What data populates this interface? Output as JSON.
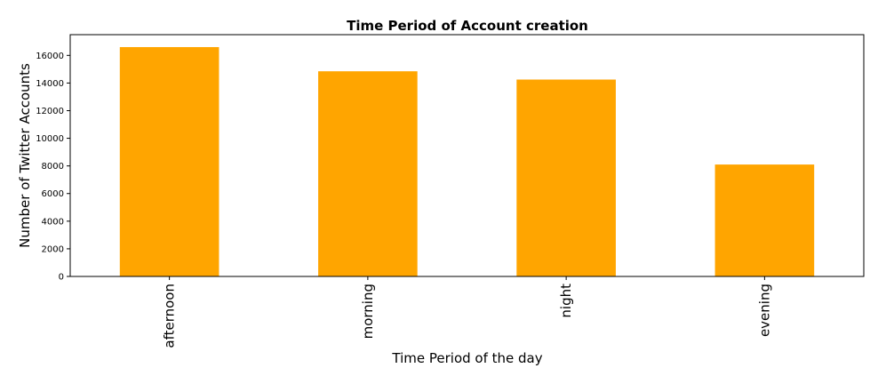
{
  "chart_data": {
    "type": "bar",
    "title": "Time Period of Account creation",
    "xlabel": "Time Period of the day",
    "ylabel": "Number of Twitter Accounts",
    "categories": [
      "afternoon",
      "morning",
      "night",
      "evening"
    ],
    "values": [
      16600,
      14850,
      14250,
      8100
    ],
    "ylim": [
      0,
      17500
    ],
    "yticks": [
      0,
      2000,
      4000,
      6000,
      8000,
      10000,
      12000,
      14000,
      16000
    ],
    "ytick_labels": [
      "0",
      "2000",
      "4000",
      "6000",
      "8000",
      "10000",
      "12000",
      "14000",
      "16000"
    ],
    "bar_color": "#FFA500",
    "grid": false,
    "legend": "none",
    "xtick_rotation": "vertical"
  }
}
